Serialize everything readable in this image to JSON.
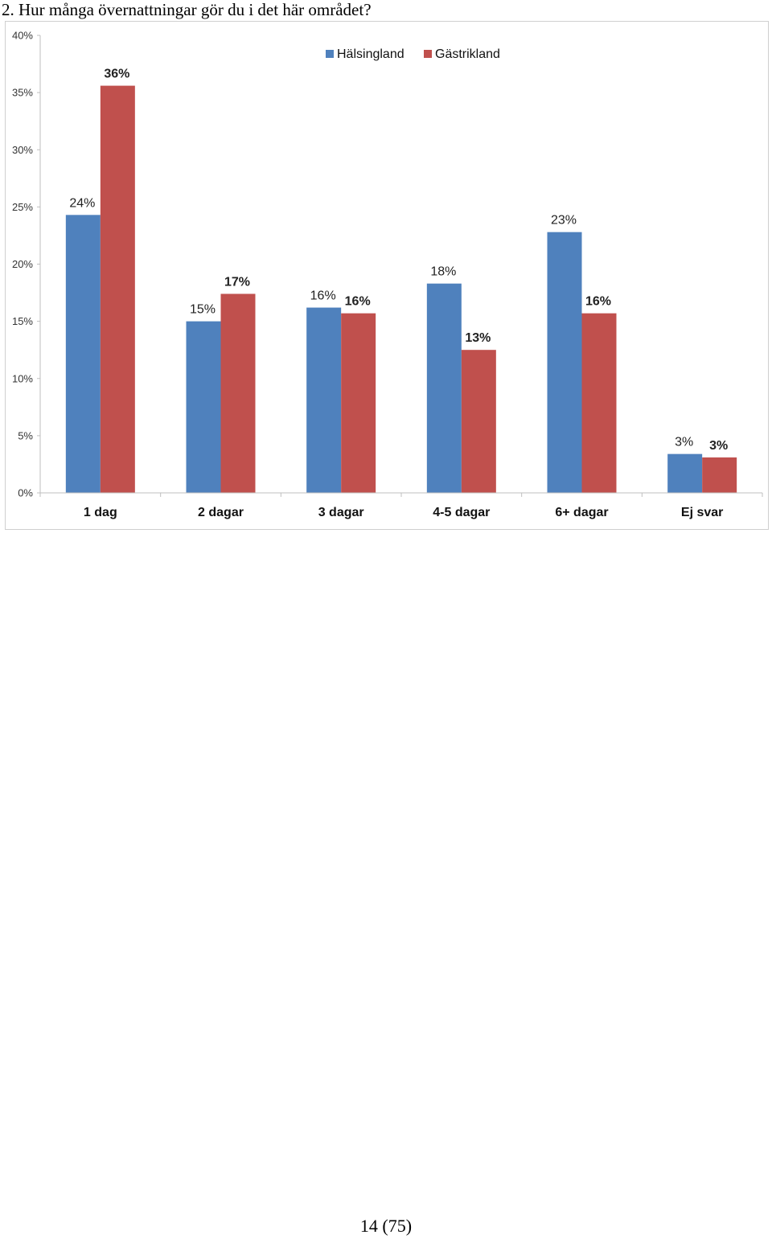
{
  "question": "2. Hur många övernattningar gör du i det här området?",
  "page_number": "14 (75)",
  "colors": {
    "halsingland": "#4f81bd",
    "gastrikland": "#c0504d",
    "axis": "#bfbfbf",
    "frame": "#cfcfcf"
  },
  "chart_data": {
    "type": "bar",
    "title": "",
    "xlabel": "",
    "ylabel": "",
    "ylim": [
      0,
      40
    ],
    "yticks": [
      "0%",
      "5%",
      "10%",
      "15%",
      "20%",
      "25%",
      "30%",
      "35%",
      "40%"
    ],
    "categories": [
      "1 dag",
      "2 dagar",
      "3 dagar",
      "4-5 dagar",
      "6+ dagar",
      "Ej svar"
    ],
    "legend_position": "top-center",
    "grid": false,
    "series": [
      {
        "name": "Hälsingland",
        "color": "#4f81bd",
        "values": [
          24.3,
          15.0,
          16.2,
          18.3,
          22.8,
          3.4
        ],
        "labels": [
          "24%",
          "15%",
          "16%",
          "18%",
          "23%",
          "3%"
        ],
        "label_bold": false
      },
      {
        "name": "Gästrikland",
        "color": "#c0504d",
        "values": [
          35.6,
          17.4,
          15.7,
          12.5,
          15.7,
          3.1
        ],
        "labels": [
          "36%",
          "17%",
          "16%",
          "13%",
          "16%",
          "3%"
        ],
        "label_bold": true
      }
    ]
  }
}
